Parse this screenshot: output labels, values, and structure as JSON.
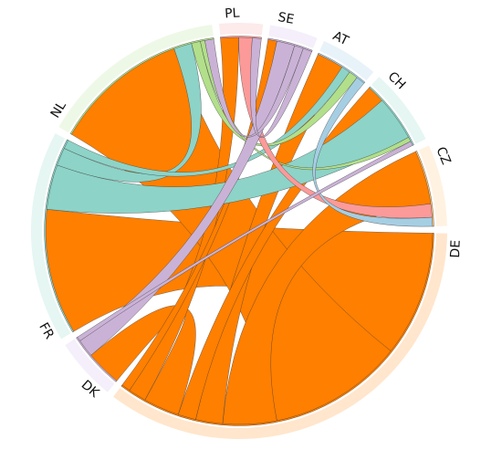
{
  "chart_data": {
    "type": "chord",
    "nodes": [
      {
        "id": "AT",
        "label": "AT",
        "color": "#a6cee3",
        "outer_color": "#e8f3f9"
      },
      {
        "id": "CH",
        "label": "CH",
        "color": "#8dd3c7",
        "outer_color": "#e5f6f3"
      },
      {
        "id": "CZ",
        "label": "CZ",
        "color": "#fdbf6f",
        "outer_color": "#fff2e1"
      },
      {
        "id": "DE",
        "label": "DE",
        "color": "#ff7f00",
        "outer_color": "#ffe6cc"
      },
      {
        "id": "DK",
        "label": "DK",
        "color": "#cab2d6",
        "outer_color": "#f4effa"
      },
      {
        "id": "FR",
        "label": "FR",
        "color": "#8dd3c7",
        "outer_color": "#e5f6f3"
      },
      {
        "id": "NL",
        "label": "NL",
        "color": "#b2df8a",
        "outer_color": "#eef8e6"
      },
      {
        "id": "PL",
        "label": "PL",
        "color": "#fb9a99",
        "outer_color": "#fdeaea"
      },
      {
        "id": "SE",
        "label": "SE",
        "color": "#cab2d6",
        "outer_color": "#f4effa"
      }
    ],
    "flows": [
      {
        "source": "DE",
        "target": "FR",
        "value": 140
      },
      {
        "source": "DE",
        "target": "NL",
        "value": 150
      },
      {
        "source": "DE",
        "target": "CZ",
        "value": 60
      },
      {
        "source": "DE",
        "target": "AT",
        "value": 30
      },
      {
        "source": "DE",
        "target": "CH",
        "value": 20
      },
      {
        "source": "DE",
        "target": "DK",
        "value": 40
      },
      {
        "source": "DE",
        "target": "PL",
        "value": 20
      },
      {
        "source": "DE",
        "target": "SE",
        "value": 10
      },
      {
        "source": "FR",
        "target": "CH",
        "value": 50
      },
      {
        "source": "FR",
        "target": "NL",
        "value": 20
      },
      {
        "source": "FR",
        "target": "AT",
        "value": 10
      },
      {
        "source": "NL",
        "target": "AT",
        "value": 10
      },
      {
        "source": "NL",
        "target": "CH",
        "value": 5
      },
      {
        "source": "PL",
        "target": "CZ",
        "value": 15
      },
      {
        "source": "SE",
        "target": "DK",
        "value": 20
      },
      {
        "source": "SE",
        "target": "NL",
        "value": 10
      },
      {
        "source": "SE",
        "target": "PL",
        "value": 10
      },
      {
        "source": "AT",
        "target": "CZ",
        "value": 10
      },
      {
        "source": "DK",
        "target": "CH",
        "value": 5
      }
    ]
  }
}
